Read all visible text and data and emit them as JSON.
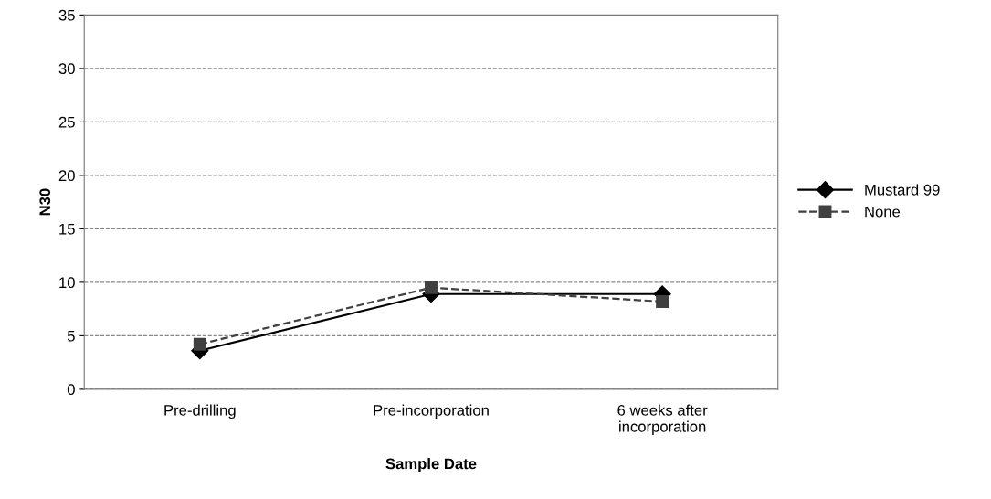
{
  "chart_data": {
    "type": "line",
    "xlabel": "Sample Date",
    "ylabel": "N30",
    "categories": [
      "Pre-drilling",
      "Pre-incorporation",
      "6 weeks after\nincorporation"
    ],
    "series": [
      {
        "name": "Mustard 99",
        "color": "#000000",
        "values": [
          3.6,
          8.9,
          8.9
        ],
        "marker": "diamond",
        "line_style": "solid"
      },
      {
        "name": "None",
        "color": "#404040",
        "values": [
          4.2,
          9.5,
          8.2
        ],
        "marker": "square",
        "line_style": "dashed"
      }
    ],
    "ylim": [
      0,
      35
    ],
    "yticks": [
      0,
      5,
      10,
      15,
      20,
      25,
      30,
      35
    ],
    "grid": "y",
    "legend": "right"
  }
}
